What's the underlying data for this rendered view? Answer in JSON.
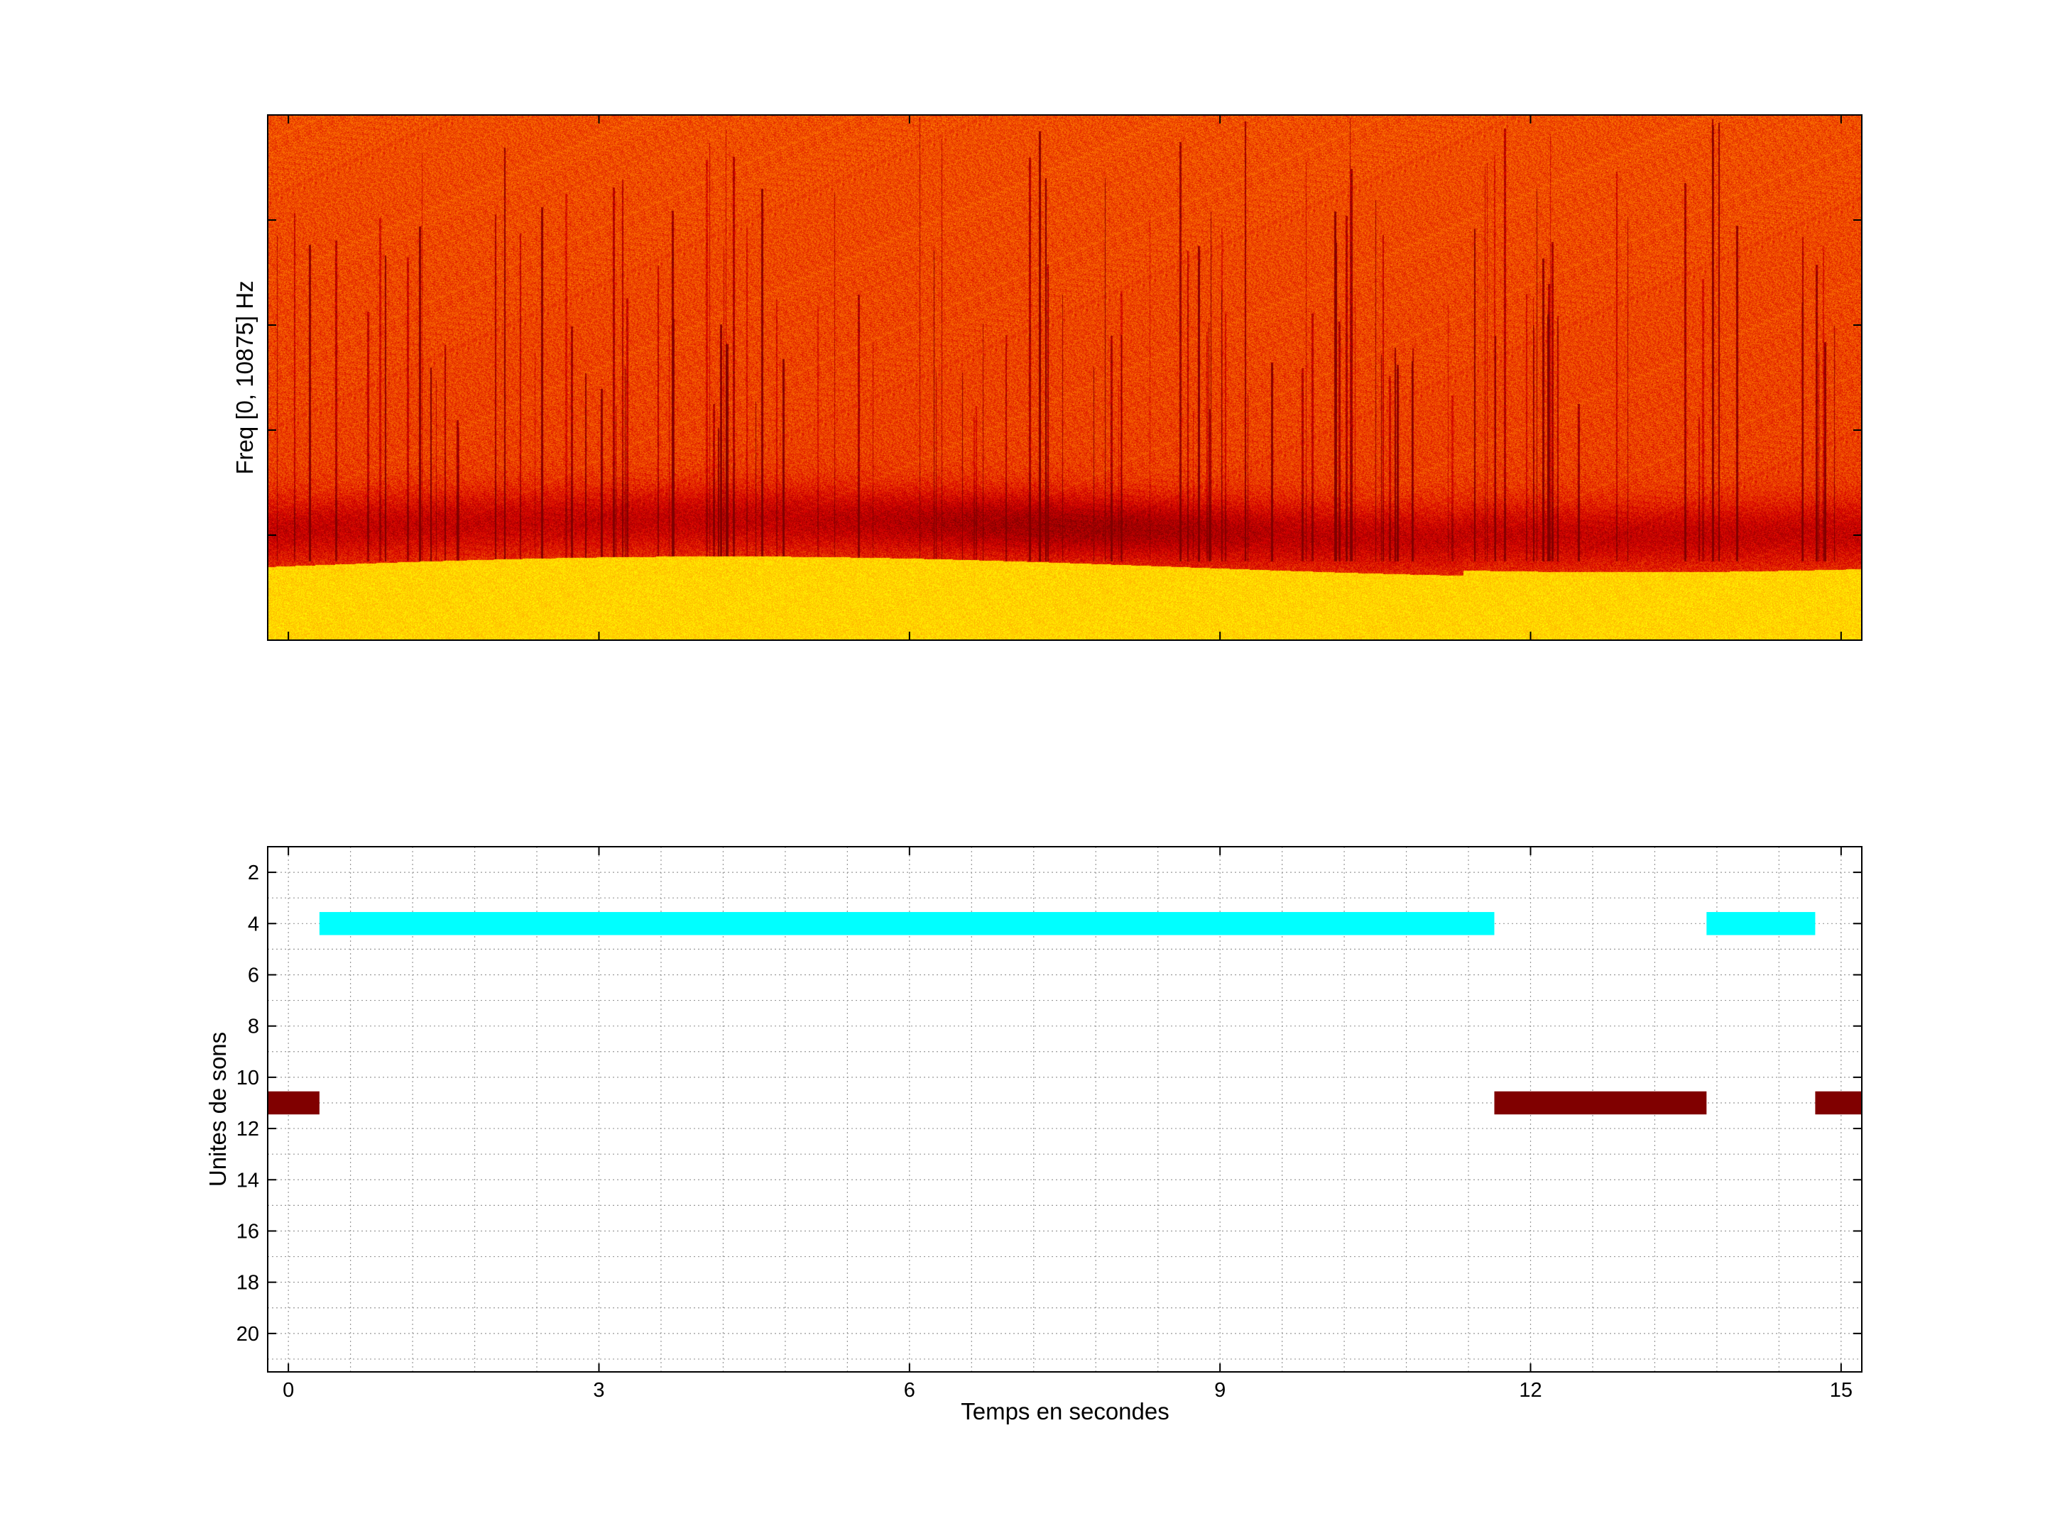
{
  "chart_data": [
    {
      "type": "heatmap",
      "ylabel": "Freq [0, 10875] Hz",
      "xlim": [
        -0.2,
        15.2
      ],
      "ylim": [
        0,
        10875
      ],
      "colormap": [
        "#00e6e6",
        "#ffff00",
        "#ff8000",
        "#d80000",
        "#800000"
      ]
    },
    {
      "type": "bar",
      "orientation": "horizontal-segments",
      "xlabel": "Temps en secondes",
      "ylabel": "Unites de sons",
      "xlim": [
        -0.2,
        15.2
      ],
      "ylim": [
        1,
        21.5
      ],
      "y_reversed": true,
      "grid": true,
      "xticks": [
        0,
        3,
        6,
        9,
        12,
        15
      ],
      "yticks": [
        2,
        4,
        6,
        8,
        10,
        12,
        14,
        16,
        18,
        20
      ],
      "series": [
        {
          "unit": 4,
          "color": "#00ffff",
          "segments": [
            [
              0.3,
              11.65
            ],
            [
              13.7,
              14.75
            ]
          ]
        },
        {
          "unit": 11,
          "color": "#800000",
          "segments": [
            [
              -0.2,
              0.3
            ],
            [
              11.65,
              13.7
            ],
            [
              14.75,
              15.2
            ]
          ]
        }
      ]
    }
  ]
}
